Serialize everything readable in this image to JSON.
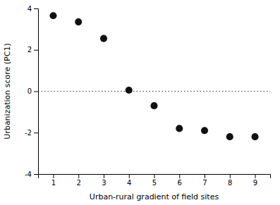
{
  "chart_data": {
    "type": "scatter",
    "x": [
      1,
      2,
      3,
      4,
      5,
      6,
      7,
      8,
      9
    ],
    "y": [
      3.65,
      3.35,
      2.55,
      0.05,
      -0.7,
      -1.8,
      -1.9,
      -2.2,
      -2.2
    ],
    "xlabel": "Urban-rural gradient of field sites",
    "ylabel": "Urbanization score (PC1)",
    "xlim": [
      0.4,
      9.6
    ],
    "ylim": [
      -4,
      4
    ],
    "xticks": [
      1,
      2,
      3,
      4,
      5,
      6,
      7,
      8,
      9
    ],
    "yticks": [
      -4,
      -2,
      0,
      2,
      4
    ],
    "color": "#111111",
    "marker": "circle",
    "grid": false,
    "hline": {
      "y": 0,
      "line_style": "dotted",
      "color": "#333333"
    }
  }
}
